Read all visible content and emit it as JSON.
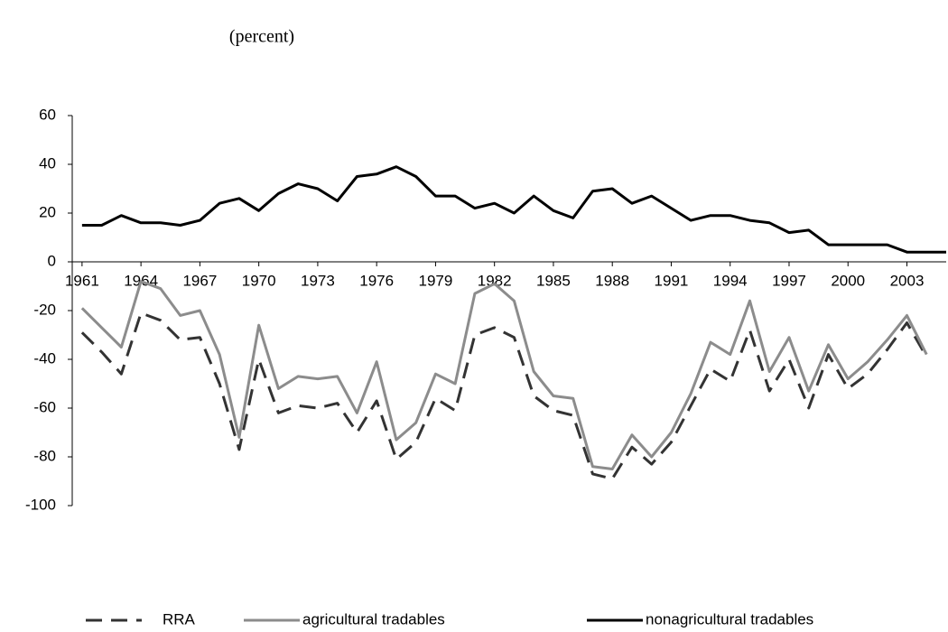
{
  "chart_data": {
    "type": "line",
    "title": "(percent)",
    "x": [
      1961,
      1962,
      1963,
      1964,
      1965,
      1966,
      1967,
      1968,
      1969,
      1970,
      1971,
      1972,
      1973,
      1974,
      1975,
      1976,
      1977,
      1978,
      1979,
      1980,
      1981,
      1982,
      1983,
      1984,
      1985,
      1986,
      1987,
      1988,
      1989,
      1990,
      1991,
      1992,
      1993,
      1994,
      1995,
      1996,
      1997,
      1998,
      1999,
      2000,
      2001,
      2002,
      2003,
      2004,
      2005
    ],
    "xlim": [
      1960.5,
      2005
    ],
    "xticks": [
      1961,
      1964,
      1967,
      1970,
      1973,
      1976,
      1979,
      1982,
      1985,
      1988,
      1991,
      1994,
      1997,
      2000,
      2003
    ],
    "ylim": [
      -100,
      60
    ],
    "yticks": [
      -100,
      -80,
      -60,
      -40,
      -20,
      0,
      20,
      40,
      60
    ],
    "grid": false,
    "legend": "bottom",
    "series": [
      {
        "name": "RRA",
        "color": "#333333",
        "dash": true,
        "values": [
          -29,
          -37,
          -46,
          -21,
          -24,
          -32,
          -31,
          -50,
          -77,
          -40,
          -62,
          -59,
          -60,
          -58,
          -70,
          -57,
          -81,
          -74,
          -56,
          -61,
          -30,
          -27,
          -31,
          -55,
          -61,
          -63,
          -87,
          -89,
          -76,
          -83,
          -74,
          -59,
          -44,
          -49,
          -28,
          -53,
          -40,
          -60,
          -38,
          -52,
          -46,
          -36,
          -25,
          -39,
          null
        ]
      },
      {
        "name": "agricultural tradables",
        "color": "#8c8c8c",
        "dash": false,
        "values": [
          -19,
          -27,
          -35,
          -8,
          -11,
          -22,
          -20,
          -38,
          -72,
          -26,
          -52,
          -47,
          -48,
          -47,
          -62,
          -41,
          -73,
          -66,
          -46,
          -50,
          -13,
          -9,
          -16,
          -45,
          -55,
          -56,
          -84,
          -85,
          -71,
          -80,
          -70,
          -54,
          -33,
          -38,
          -16,
          -45,
          -31,
          -53,
          -34,
          -48,
          -41,
          -32,
          -22,
          -38,
          null
        ]
      },
      {
        "name": "nonagricultural tradables",
        "color": "#000000",
        "dash": false,
        "values": [
          15,
          15,
          19,
          16,
          16,
          15,
          17,
          24,
          26,
          21,
          28,
          32,
          30,
          25,
          35,
          36,
          39,
          35,
          27,
          27,
          22,
          24,
          20,
          27,
          21,
          18,
          29,
          30,
          24,
          27,
          22,
          17,
          19,
          19,
          17,
          16,
          12,
          13,
          7,
          7,
          7,
          7,
          4,
          4,
          4
        ]
      }
    ]
  }
}
